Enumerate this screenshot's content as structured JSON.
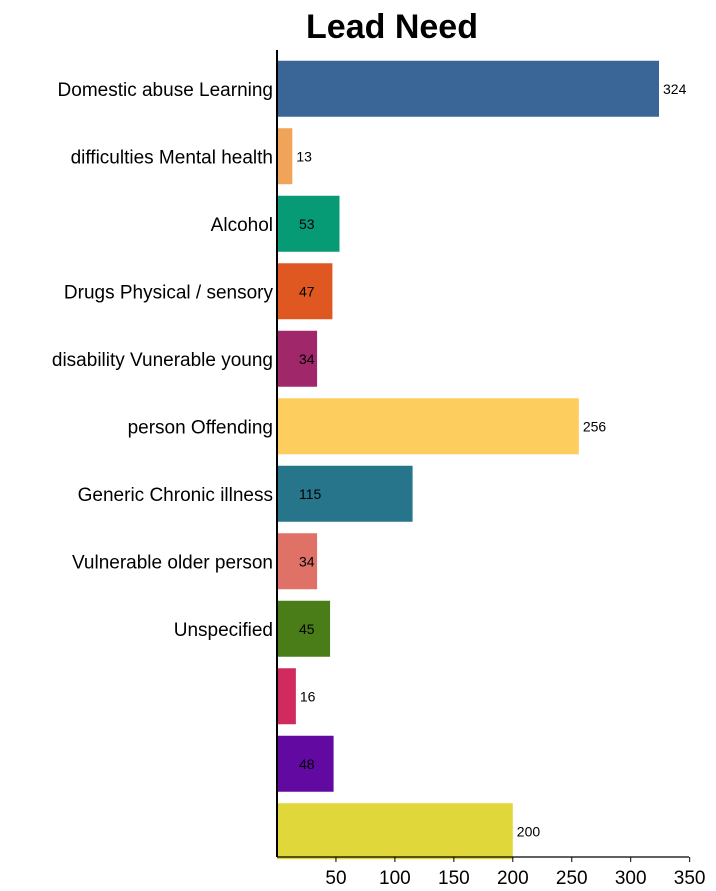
{
  "chart_data": {
    "type": "bar",
    "orientation": "horizontal",
    "title": "Lead Need",
    "category_labels": [
      "Domestic abuse Learning",
      "difficulties Mental health",
      "Alcohol",
      "Drugs Physical / sensory",
      "disability Vunerable young",
      "person Offending",
      "Generic Chronic illness",
      "Vulnerable older person",
      "Unspecified",
      "",
      "",
      ""
    ],
    "values": [
      324,
      13,
      53,
      47,
      34,
      256,
      115,
      34,
      45,
      16,
      48,
      200
    ],
    "colors": [
      "#3a6597",
      "#f0a45a",
      "#069a75",
      "#e05821",
      "#a0286a",
      "#fdcd5e",
      "#27758a",
      "#df7167",
      "#4a7c18",
      "#d02a5e",
      "#6209a2",
      "#e0d73a"
    ],
    "x_ticks": [
      50,
      100,
      150,
      200,
      250,
      300,
      350
    ],
    "xlim": [
      0,
      350
    ],
    "xlabel": "",
    "ylabel": "",
    "grid": false,
    "legend": "none"
  }
}
